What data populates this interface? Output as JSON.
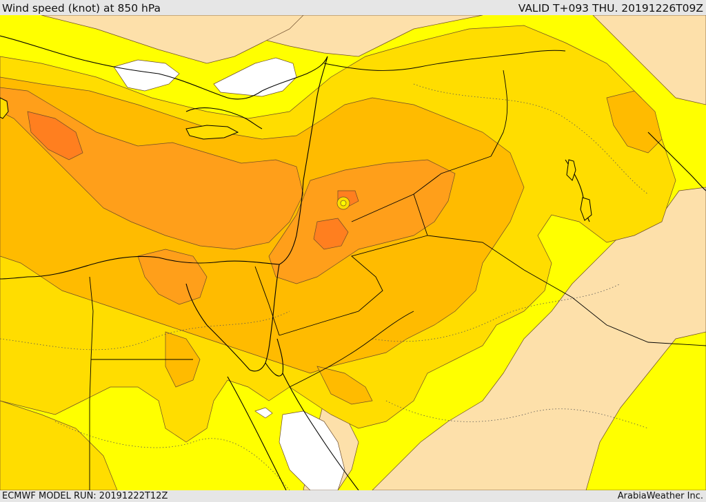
{
  "header": {
    "title": "Wind speed (knot) at 850 hPa",
    "valid": "VALID T+093 THU. 20191226T09Z"
  },
  "footer": {
    "model_run": "ECMWF MODEL RUN: 20191222T12Z",
    "credit": "ArabiaWeather Inc."
  },
  "colors": {
    "calm": "#ffffff",
    "light": "#fde0aa",
    "yellow": "#ffff00",
    "gold": "#ffdd00",
    "amber": "#ffbb00",
    "orange": "#ff9f1a",
    "dark_orange": "#ff7f1f",
    "contour": "#6b4a2a",
    "border": "#000000"
  }
}
